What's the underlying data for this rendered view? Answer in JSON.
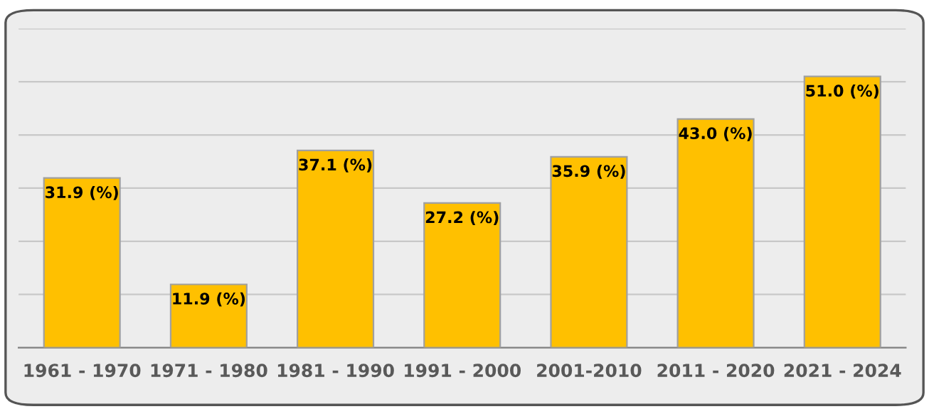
{
  "chart_data": {
    "type": "bar",
    "categories": [
      "1961 - 1970",
      "1971 - 1980",
      "1981 - 1990",
      "1991 - 2000",
      "2001-2010",
      "2011 - 2020",
      "2021 - 2024"
    ],
    "values": [
      31.9,
      11.9,
      37.1,
      27.2,
      35.9,
      43.0,
      51.0
    ],
    "value_labels": [
      "31.9 (%)",
      "11.9 (%)",
      "37.1 (%)",
      "27.2 (%)",
      "35.9 (%)",
      "43.0 (%)",
      "51.0 (%)"
    ],
    "color": "#ffc000",
    "ylim": [
      0,
      60
    ],
    "yticks": [
      {
        "value": 10,
        "label": null
      },
      {
        "value": 20,
        "label": null
      },
      {
        "value": 30,
        "label": null
      },
      {
        "value": 40,
        "label": null
      },
      {
        "value": 50,
        "label": null
      },
      {
        "value": 60,
        "label": null
      }
    ],
    "grid": "y",
    "tick_labels": "x"
  }
}
